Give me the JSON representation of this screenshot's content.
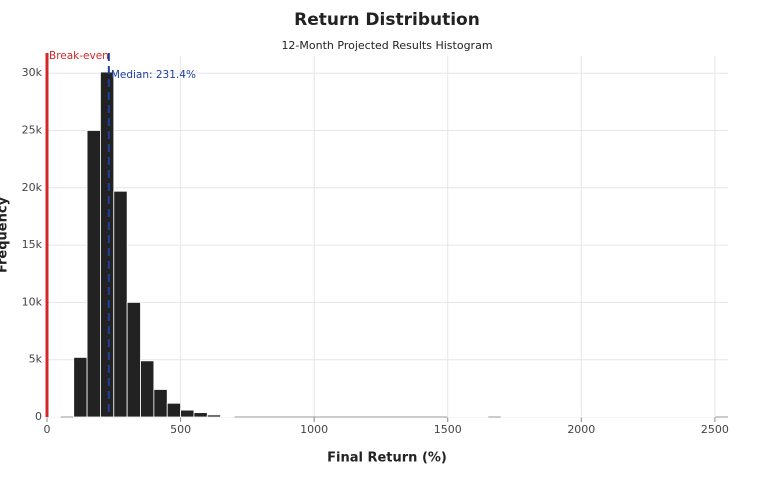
{
  "chart_data": {
    "type": "histogram",
    "title": "Return Distribution",
    "subtitle": "12-Month Projected Results Histogram",
    "x_label": "Final Return (%)",
    "y_label": "Frequency",
    "bins": [
      0,
      50,
      100,
      150,
      200,
      250,
      300,
      350,
      400,
      450,
      500,
      550,
      600,
      650,
      700,
      750,
      800,
      850,
      900,
      950,
      1000,
      1050,
      1100,
      1150,
      1200,
      1250,
      1300,
      1350,
      1400,
      1450,
      1500,
      1550,
      1600,
      1650,
      1700,
      1750,
      1800,
      1850,
      1900,
      1950,
      2000,
      2050,
      2100,
      2150,
      2200,
      2250,
      2300,
      2350,
      2400,
      2450,
      2500
    ],
    "values": [
      60,
      0,
      5200,
      25000,
      30100,
      19700,
      10000,
      4900,
      2400,
      1200,
      600,
      380,
      180,
      70,
      0,
      0,
      0,
      0,
      0,
      0,
      0,
      0,
      0,
      0,
      0,
      0,
      0,
      0,
      0,
      0,
      60,
      60,
      60,
      0,
      60,
      60,
      60,
      60,
      60,
      60,
      60,
      60,
      60,
      60,
      60,
      60,
      60,
      60,
      60,
      60
    ],
    "color": "#222222",
    "xlim": [
      0,
      2549
    ],
    "ylim": [
      0,
      31500
    ],
    "xticks": [
      0,
      500,
      1000,
      1500,
      2000,
      2500
    ],
    "yticks": [
      0,
      {
        "value": 5000,
        "label": "5k"
      },
      {
        "value": 10000,
        "label": "10k"
      },
      {
        "value": 15000,
        "label": "15k"
      },
      {
        "value": 20000,
        "label": "20k"
      },
      {
        "value": 25000,
        "label": "25k"
      },
      {
        "value": 30000,
        "label": "30k"
      }
    ],
    "grid": true,
    "annotations": [
      {
        "text": "Break-even",
        "x": 0,
        "color": "#d62728",
        "style": "solid"
      },
      {
        "text": "Median: 231.4%",
        "x": 231.4,
        "color": "#1f3f9f",
        "style": "dashed"
      }
    ]
  }
}
